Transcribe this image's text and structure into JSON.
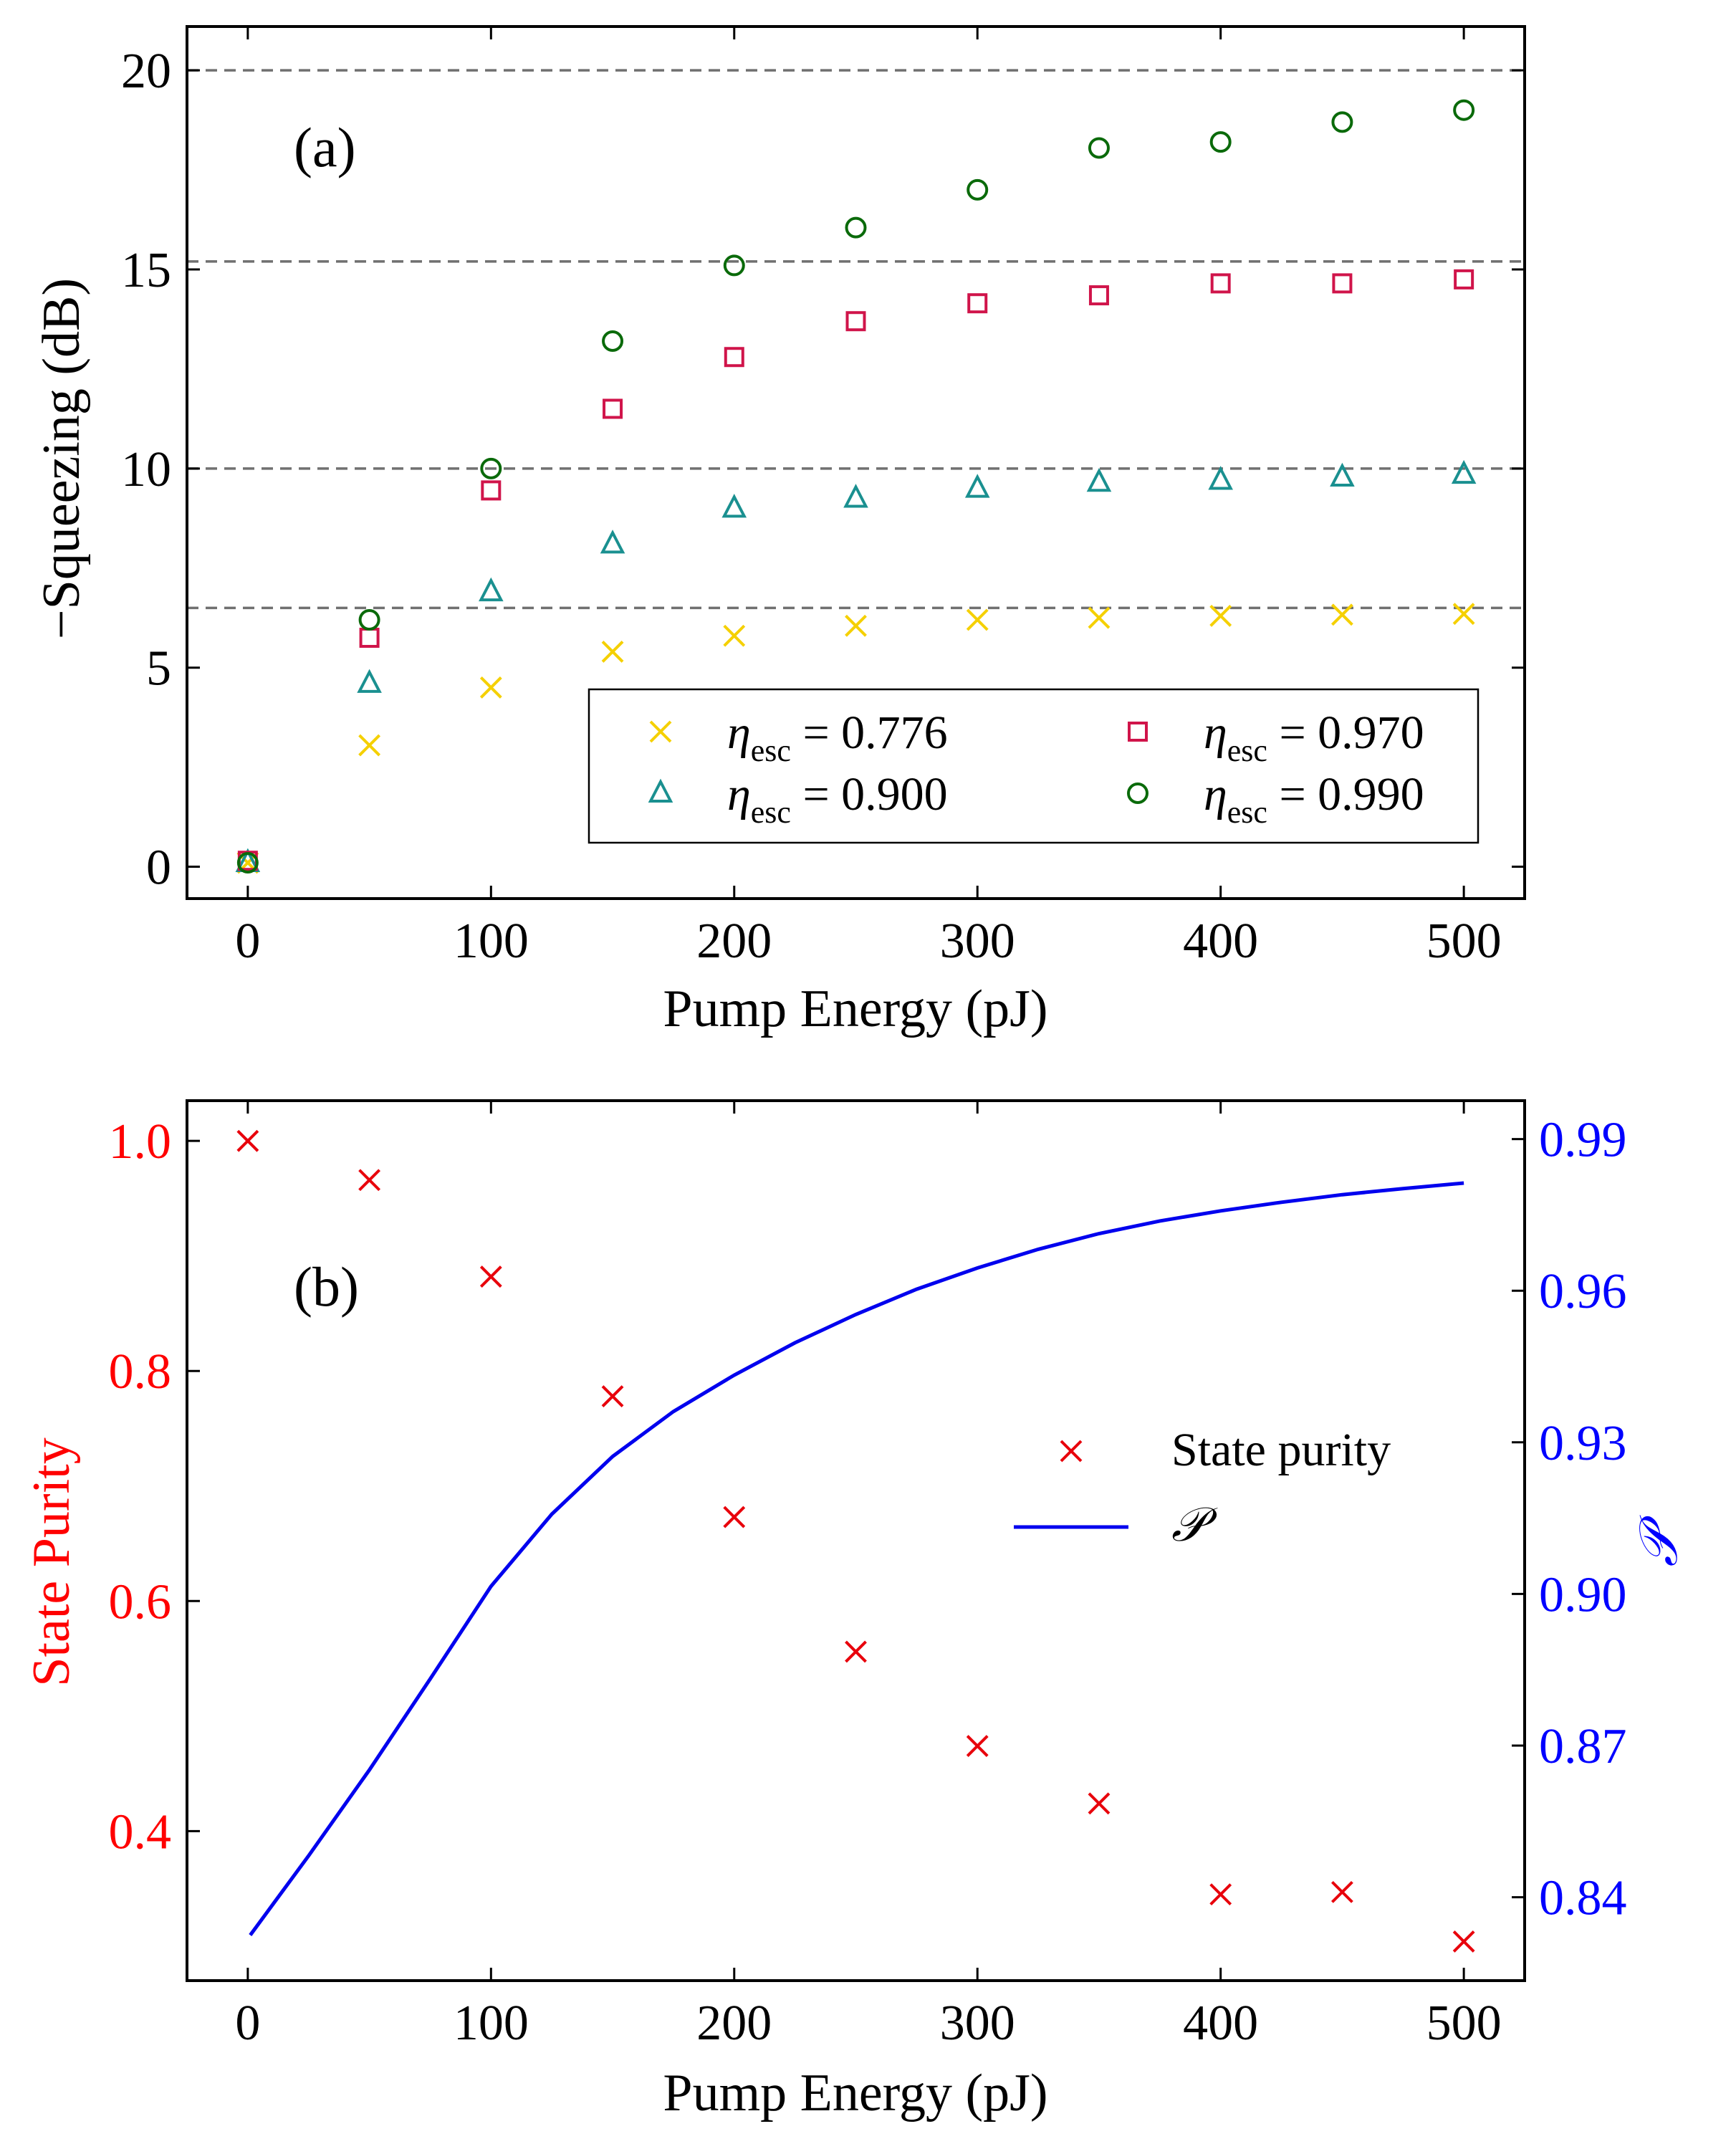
{
  "chart_data": [
    {
      "type": "scatter",
      "panel_label": "(a)",
      "xlabel": "Pump Energy (pJ)",
      "ylabel": "−Squeezing (dB)",
      "xlim": [
        -25,
        525
      ],
      "ylim": [
        -0.8,
        21.1
      ],
      "xticks": [
        0,
        100,
        200,
        300,
        400,
        500
      ],
      "yticks": [
        0,
        5,
        10,
        15,
        20
      ],
      "reference_lines": [
        6.5,
        10.0,
        15.2,
        20.0
      ],
      "x": [
        0,
        50,
        100,
        150,
        200,
        250,
        300,
        350,
        400,
        450,
        500
      ],
      "legend_position": "lower-right",
      "series": [
        {
          "name": "ηesc = 0.776",
          "symbol": "η",
          "subscript": "esc",
          "value_text": " = 0.776",
          "marker": "x",
          "color": "#f5d000",
          "values": [
            0.1,
            3.05,
            4.5,
            5.4,
            5.8,
            6.05,
            6.2,
            6.25,
            6.3,
            6.33,
            6.35
          ]
        },
        {
          "name": "ηesc = 0.900",
          "symbol": "η",
          "subscript": "esc",
          "value_text": " = 0.900",
          "marker": "triangle",
          "color": "#1a9090",
          "values": [
            0.1,
            4.6,
            6.9,
            8.1,
            9.0,
            9.25,
            9.5,
            9.65,
            9.7,
            9.78,
            9.85
          ]
        },
        {
          "name": "ηesc = 0.970",
          "symbol": "η",
          "subscript": "esc",
          "value_text": " = 0.970",
          "marker": "square",
          "color": "#d0144a",
          "values": [
            0.15,
            5.75,
            9.45,
            11.5,
            12.8,
            13.7,
            14.15,
            14.35,
            14.65,
            14.65,
            14.75
          ]
        },
        {
          "name": "ηesc = 0.990",
          "symbol": "η",
          "subscript": "esc",
          "value_text": " = 0.990",
          "marker": "circle",
          "color": "#0a6a0a",
          "values": [
            0.1,
            6.2,
            10.0,
            13.2,
            15.1,
            16.05,
            17.0,
            18.05,
            18.2,
            18.7,
            19.0
          ]
        }
      ]
    },
    {
      "type": "scatter",
      "panel_label": "(b)",
      "xlabel": "Pump Energy (pJ)",
      "ylabel_left": "State Purity",
      "ylabel_right": "𝒫",
      "xlim": [
        -25,
        525
      ],
      "ylim_left": [
        0.27,
        1.035
      ],
      "ylim_right": [
        0.8235,
        0.9976
      ],
      "xticks": [
        0,
        100,
        200,
        300,
        400,
        500
      ],
      "yticks_left": [
        0.4,
        0.6,
        0.8,
        1.0
      ],
      "yticks_left_labels": [
        "0.4",
        "0.6",
        "0.8",
        "1.0"
      ],
      "yticks_right": [
        0.84,
        0.87,
        0.9,
        0.93,
        0.96,
        0.99
      ],
      "yticks_right_labels": [
        "0.84",
        "0.87",
        "0.90",
        "0.93",
        "0.96",
        "0.99"
      ],
      "left_color": "#ff0000",
      "right_color": "#0000ff",
      "legend_position": "center-right",
      "purity": {
        "name": "State purity",
        "marker": "x",
        "color": "#e8000b",
        "x": [
          0,
          50,
          100,
          150,
          200,
          250,
          300,
          350,
          400,
          450,
          500
        ],
        "values": [
          1.0,
          0.966,
          0.882,
          0.778,
          0.673,
          0.556,
          0.474,
          0.424,
          0.345,
          0.347,
          0.304
        ]
      },
      "P_curve": {
        "name": "𝒫",
        "color": "#0000ee",
        "x": [
          1,
          25,
          50,
          75,
          100,
          125,
          150,
          175,
          200,
          225,
          250,
          275,
          300,
          325,
          350,
          375,
          400,
          425,
          450,
          475,
          500
        ],
        "values": [
          0.8325,
          0.8482,
          0.8652,
          0.8832,
          0.9015,
          0.9158,
          0.9272,
          0.9361,
          0.9433,
          0.9497,
          0.9553,
          0.9603,
          0.9645,
          0.9682,
          0.9713,
          0.9738,
          0.9758,
          0.9775,
          0.979,
          0.9802,
          0.9813
        ]
      }
    }
  ]
}
